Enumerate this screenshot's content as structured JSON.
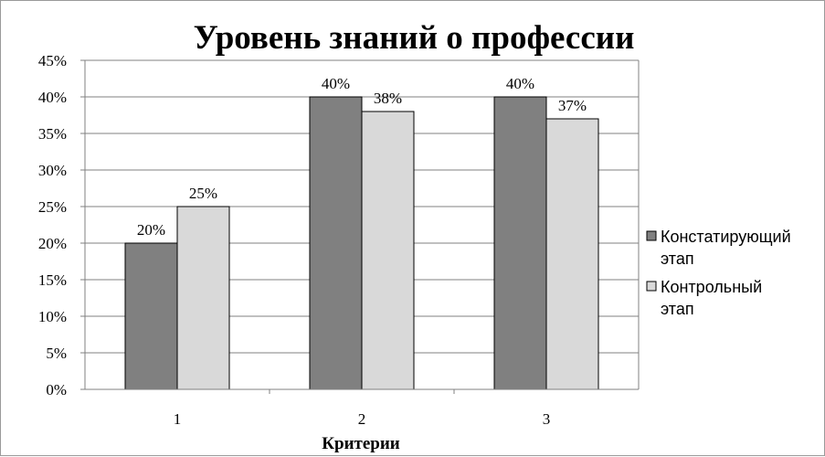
{
  "chart_data": {
    "type": "bar",
    "title": "Уровень знаний о профессии",
    "xlabel": "Критерии",
    "ylabel": "",
    "categories": [
      "1",
      "2",
      "3"
    ],
    "series": [
      {
        "name": "Констатирующий этап",
        "name_lines": [
          "Констатирующий",
          "этап"
        ],
        "values": [
          20,
          40,
          40
        ],
        "labels": [
          "20%",
          "40%",
          "40%"
        ],
        "color": "#808080"
      },
      {
        "name": "Контрольный этап",
        "name_lines": [
          "Контрольный",
          "этап"
        ],
        "values": [
          25,
          38,
          37
        ],
        "labels": [
          "25%",
          "38%",
          "37%"
        ],
        "color": "#d9d9d9"
      }
    ],
    "ylim": [
      0,
      45
    ],
    "yticks": [
      0,
      5,
      10,
      15,
      20,
      25,
      30,
      35,
      40,
      45
    ],
    "ytick_labels": [
      "0%",
      "5%",
      "10%",
      "15%",
      "20%",
      "25%",
      "30%",
      "35%",
      "40%",
      "45%"
    ],
    "grid": true,
    "legend_position": "right"
  }
}
